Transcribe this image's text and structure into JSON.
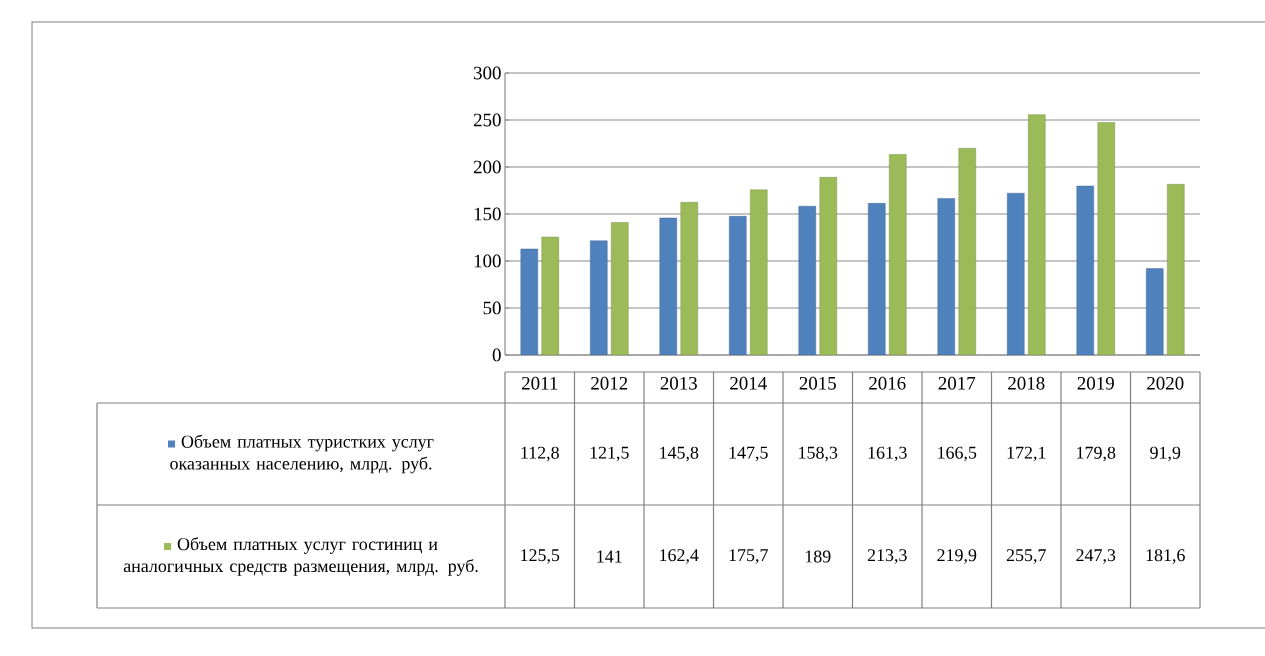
{
  "chart_data": {
    "type": "bar",
    "categories": [
      "2011",
      "2012",
      "2013",
      "2014",
      "2015",
      "2016",
      "2017",
      "2018",
      "2019",
      "2020"
    ],
    "series": [
      {
        "name": "Объем платных туристких услуг оказанных населению, млрд. руб.",
        "color": "#4f81bd",
        "values": [
          112.8,
          121.5,
          145.8,
          147.5,
          158.3,
          161.3,
          166.5,
          172.1,
          179.8,
          91.9
        ],
        "value_labels": [
          "112,8",
          "121,5",
          "145,8",
          "147,5",
          "158,3",
          "161,3",
          "166,5",
          "172,1",
          "179,8",
          "91,9"
        ]
      },
      {
        "name": "Объем платных услуг гостиниц и аналогичных средств размещения, млрд. руб.",
        "color": "#9bbb59",
        "values": [
          125.5,
          141,
          162.4,
          175.7,
          189,
          213.3,
          219.9,
          255.7,
          247.3,
          181.6
        ],
        "value_labels": [
          "125,5",
          "141",
          "162,4",
          "175,7",
          "189",
          "213,3",
          "219,9",
          "255,7",
          "247,3",
          "181,6"
        ]
      }
    ],
    "ylim": [
      0,
      300
    ],
    "yticks": [
      0,
      50,
      100,
      150,
      200,
      250,
      300
    ],
    "grid": "y",
    "legend": "bottom"
  }
}
